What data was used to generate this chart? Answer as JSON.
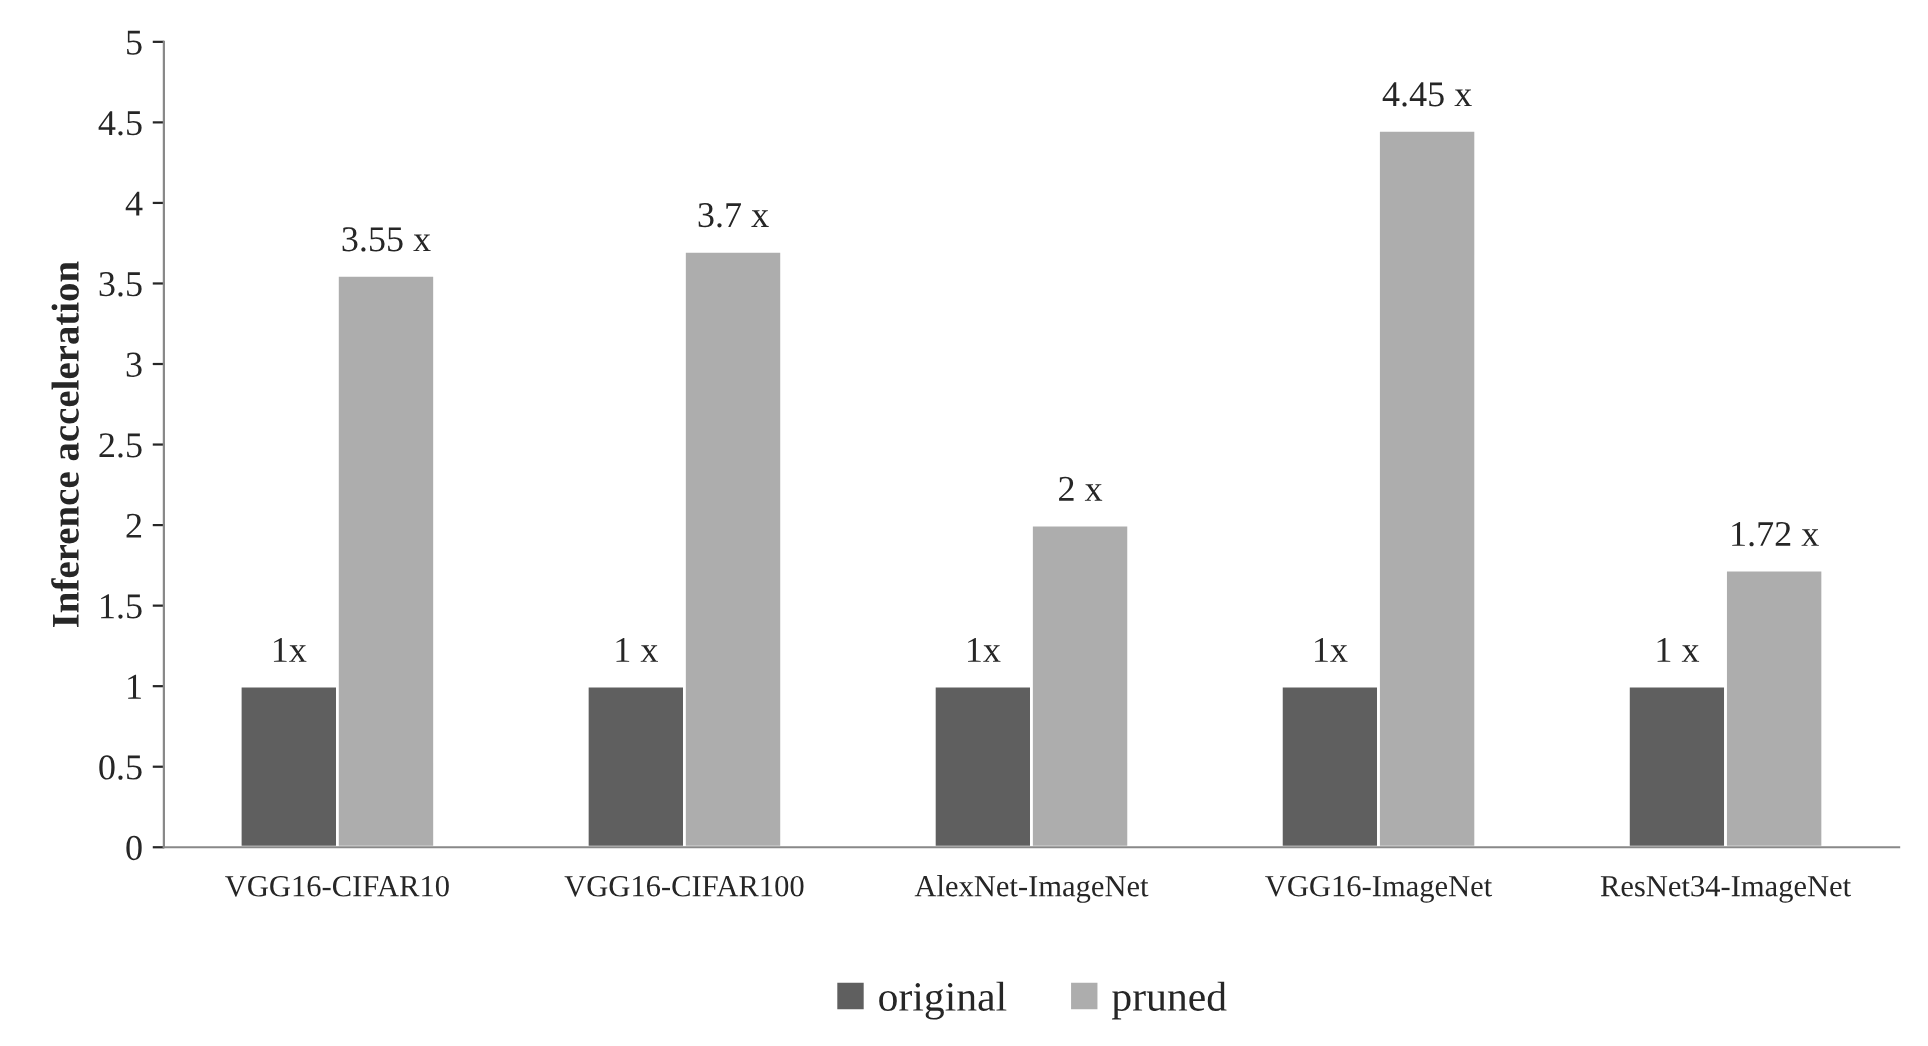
{
  "chart_data": {
    "type": "bar",
    "ylabel": "Inference acceleration",
    "categories": [
      "VGG16-CIFAR10",
      "VGG16-CIFAR100",
      "AlexNet-ImageNet",
      "VGG16-ImageNet",
      "ResNet34-ImageNet"
    ],
    "series": [
      {
        "name": "original",
        "color": "#5f5f5f",
        "values": [
          1,
          1,
          1,
          1,
          1
        ],
        "value_labels": [
          "1x",
          "1 x",
          "1x",
          "1x",
          "1 x"
        ]
      },
      {
        "name": "pruned",
        "color": "#adadad",
        "values": [
          3.55,
          3.7,
          2,
          4.45,
          1.72
        ],
        "value_labels": [
          "3.55 x",
          "3.7 x",
          "2 x",
          "4.45 x",
          "1.72 x"
        ]
      }
    ],
    "ylim": [
      0,
      5
    ],
    "yticks": [
      0,
      0.5,
      1,
      1.5,
      2,
      2.5,
      3,
      3.5,
      4,
      4.5,
      5
    ],
    "grid": false,
    "legend": "bottom"
  }
}
